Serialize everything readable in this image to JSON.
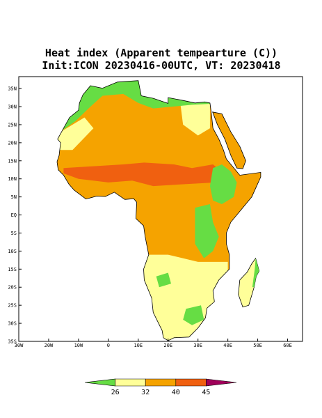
{
  "map": {
    "title": "Heat index (Apparent tempearture (C))",
    "subtitle": "Init:ICON 20230416-00UTC, VT: 20230418",
    "lon_range": [
      -30,
      65
    ],
    "lat_range": [
      -35,
      38.3
    ],
    "lon_ticks": [
      {
        "value": -30,
        "label": "30W"
      },
      {
        "value": -20,
        "label": "20W"
      },
      {
        "value": -10,
        "label": "10W"
      },
      0,
      {
        "value": 10,
        "label": "10E"
      },
      {
        "value": 20,
        "label": "20E"
      },
      {
        "value": 30,
        "label": "30E"
      },
      {
        "value": 40,
        "label": "40E"
      },
      {
        "value": 50,
        "label": "50E"
      },
      {
        "value": 60,
        "label": "60E"
      }
    ],
    "lat_ticks": [
      {
        "value": 35,
        "label": "35N"
      },
      {
        "value": 30,
        "label": "30N"
      },
      {
        "value": 25,
        "label": "25N"
      },
      {
        "value": 20,
        "label": "20N"
      },
      {
        "value": 15,
        "label": "15N"
      },
      {
        "value": 10,
        "label": "10N"
      },
      {
        "value": 5,
        "label": "5N"
      },
      {
        "value": 0,
        "label": "EQ"
      },
      {
        "value": -5,
        "label": "5S"
      },
      {
        "value": -10,
        "label": "10S"
      },
      {
        "value": -15,
        "label": "15S"
      },
      {
        "value": -20,
        "label": "20S"
      },
      {
        "value": -25,
        "label": "25S"
      },
      {
        "value": -30,
        "label": "30S"
      },
      {
        "value": -35,
        "label": "35S"
      }
    ],
    "colorbar": {
      "levels": [
        26,
        32,
        40,
        45
      ],
      "colors": [
        "#66dd44",
        "#ffff99",
        "#f5a300",
        "#f06010",
        "#a0005a"
      ]
    }
  }
}
